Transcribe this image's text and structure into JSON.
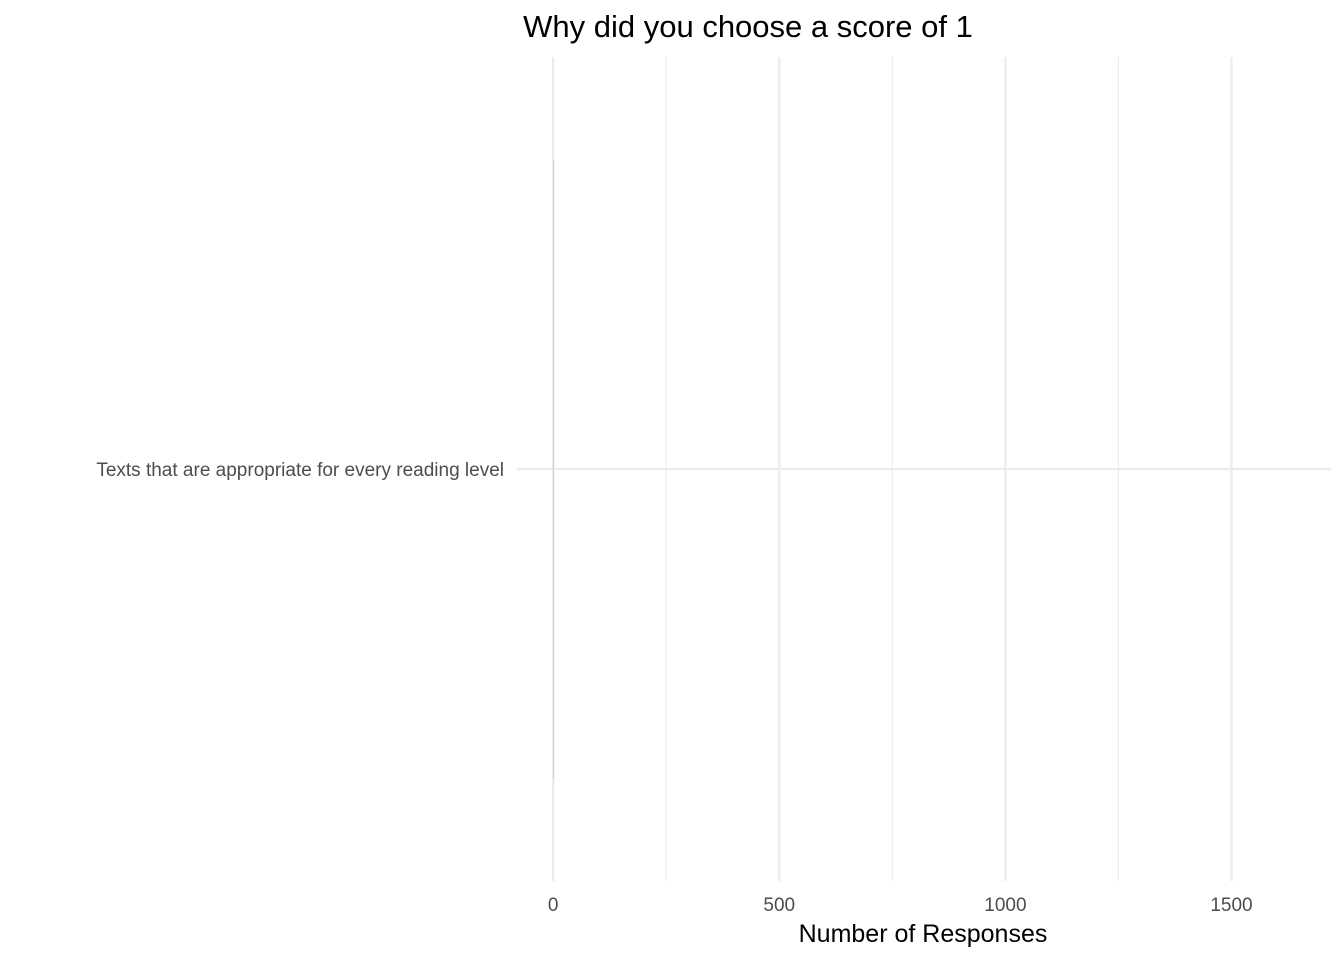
{
  "chart_data": {
    "type": "bar",
    "orientation": "horizontal",
    "title": "Why did you choose a score of 1",
    "xlabel": "Number of Responses",
    "ylabel": "",
    "categories": [
      "Texts that are appropriate for every reading level"
    ],
    "values": [
      2
    ],
    "xlim": [
      -80,
      1720
    ],
    "x_ticks": [
      0,
      500,
      1000,
      1500
    ],
    "x_tick_labels": [
      "0",
      "500",
      "1000",
      "1500"
    ],
    "x_minor_ticks": [
      250,
      750,
      1250
    ],
    "grid": true,
    "legend": "none",
    "bar_color": "#d9c7bb",
    "grid_color": "#ebebeb",
    "text_color": "#4d4d4d"
  }
}
